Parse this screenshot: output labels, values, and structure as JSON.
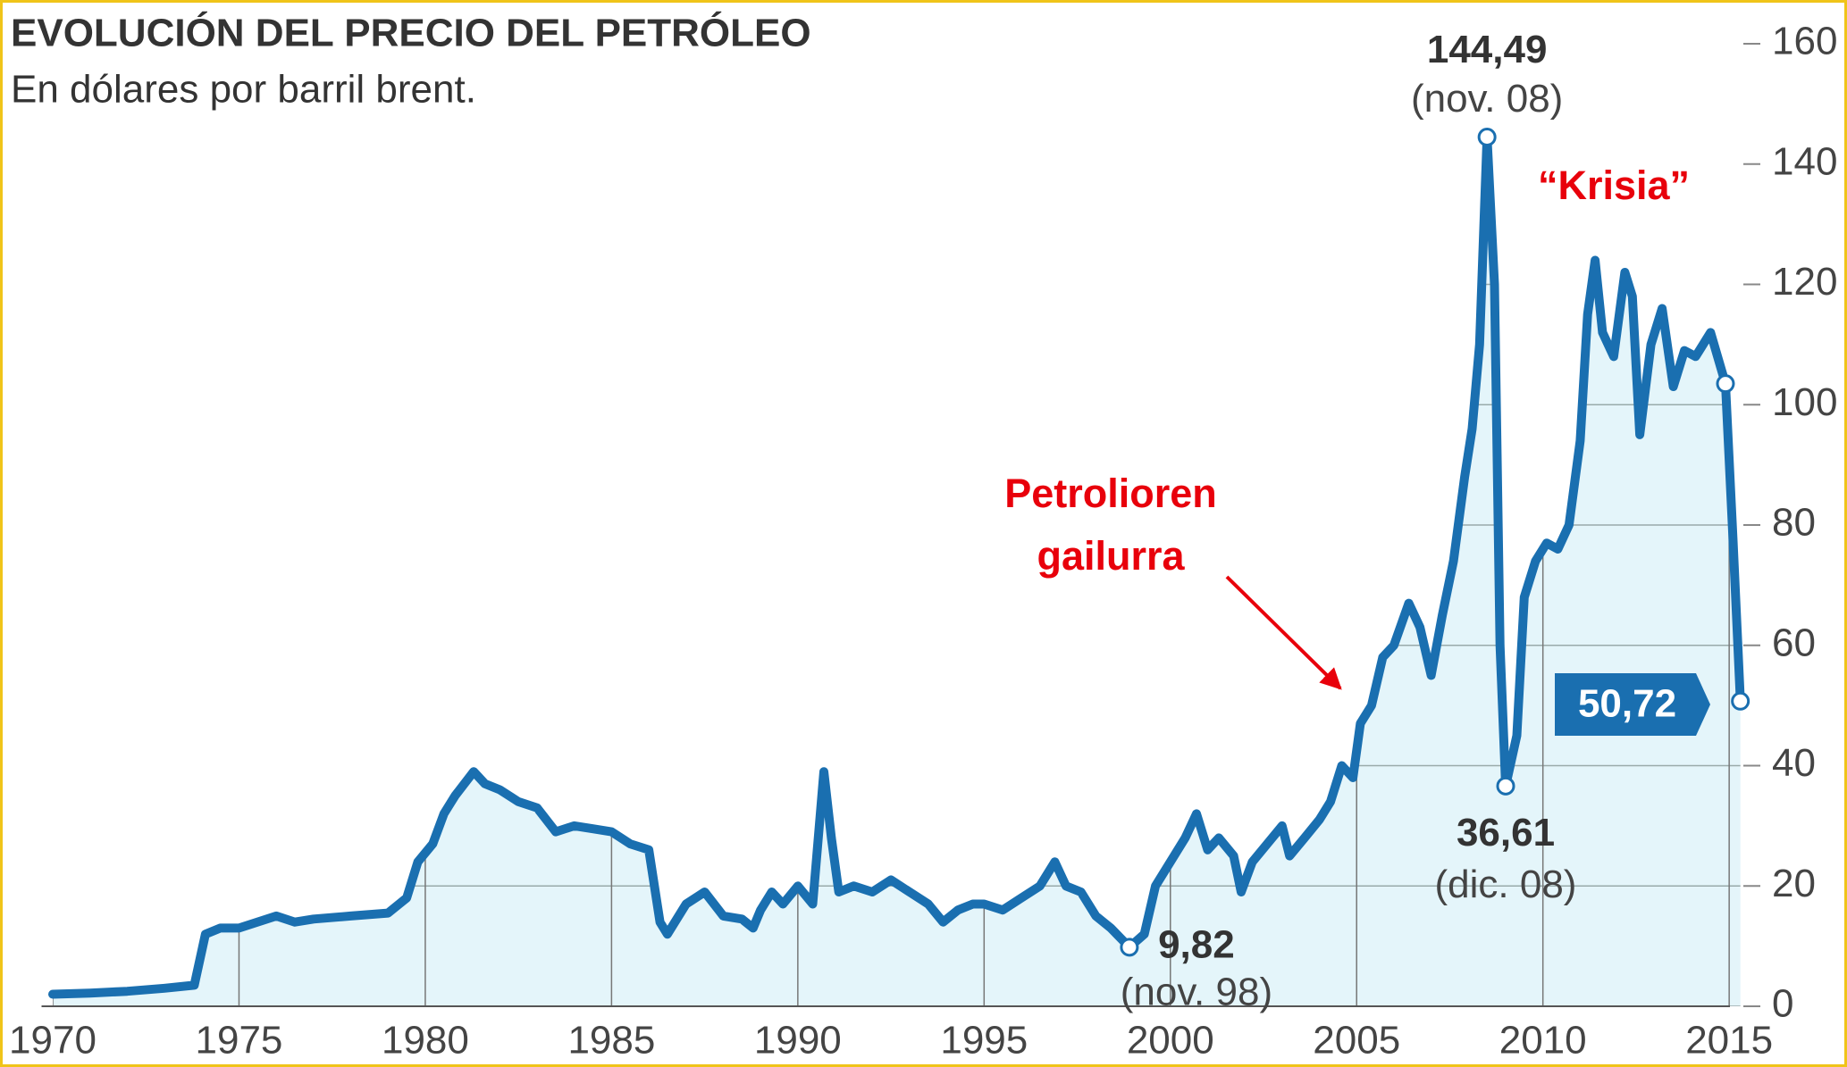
{
  "chart_data": {
    "type": "line",
    "title": "EVOLUCIÓN DEL PRECIO DEL PETRÓLEO",
    "subtitle": "En dólares por barril brent.",
    "series": [
      {
        "color": "#1a6fb0",
        "fill": "#e4f5fa",
        "x": [
          1970,
          1971,
          1972,
          1973,
          1973.8,
          1974.1,
          1974.5,
          1975,
          1976,
          1976.5,
          1977,
          1978,
          1979,
          1979.5,
          1979.8,
          1980.2,
          1980.5,
          1980.8,
          1981.3,
          1981.6,
          1982,
          1982.5,
          1983,
          1983.5,
          1984,
          1984.5,
          1985,
          1985.5,
          1986,
          1986.3,
          1986.5,
          1987,
          1987.5,
          1988,
          1988.5,
          1988.8,
          1989,
          1989.3,
          1989.6,
          1990,
          1990.4,
          1990.7,
          1990.9,
          1991.1,
          1991.5,
          1992,
          1992.5,
          1993,
          1993.5,
          1993.9,
          1994.3,
          1994.7,
          1995,
          1995.5,
          1996,
          1996.5,
          1996.9,
          1997.2,
          1997.6,
          1998,
          1998.4,
          1998.9,
          1999.3,
          1999.6,
          2000,
          2000.4,
          2000.7,
          2001,
          2001.3,
          2001.7,
          2001.9,
          2002.2,
          2002.6,
          2003,
          2003.2,
          2003.6,
          2004,
          2004.3,
          2004.6,
          2004.9,
          2005.1,
          2005.4,
          2005.7,
          2006,
          2006.4,
          2006.7,
          2007,
          2007.3,
          2007.6,
          2007.9,
          2008.1,
          2008.3,
          2008.5,
          2008.7,
          2008.85,
          2009,
          2009.3,
          2009.5,
          2009.8,
          2010.1,
          2010.4,
          2010.7,
          2011,
          2011.2,
          2011.4,
          2011.6,
          2011.9,
          2012.2,
          2012.4,
          2012.6,
          2012.9,
          2013.2,
          2013.5,
          2013.8,
          2014.1,
          2014.5,
          2014.9,
          2015.1,
          2015.3
        ],
        "values": [
          2,
          2.2,
          2.5,
          3,
          3.5,
          12,
          13,
          13,
          15,
          14,
          14.5,
          15,
          15.5,
          18,
          24,
          27,
          32,
          35,
          39,
          37,
          36,
          34,
          33,
          29,
          30,
          29.5,
          29,
          27,
          26,
          14,
          12,
          17,
          19,
          15,
          14.5,
          13,
          16,
          19,
          17,
          20,
          17,
          39,
          28,
          19,
          20,
          19,
          21,
          19,
          17,
          14,
          16,
          17,
          17,
          16,
          18,
          20,
          24,
          20,
          19,
          15,
          13,
          9.82,
          12,
          20,
          24,
          28,
          32,
          26,
          28,
          25,
          19,
          24,
          27,
          30,
          25,
          28,
          31,
          34,
          40,
          38,
          47,
          50,
          58,
          60,
          67,
          63,
          55,
          65,
          74,
          88,
          96,
          110,
          144.49,
          120,
          60,
          36.61,
          45,
          68,
          74,
          77,
          76,
          80,
          94,
          115,
          124,
          112,
          108,
          122,
          118,
          95,
          110,
          116,
          103,
          109,
          108,
          112,
          103.5,
          78,
          50.72
        ]
      }
    ],
    "markers": [
      {
        "x": 2008.5,
        "value": 144.49,
        "label": "144,49",
        "date": "(nov. 08)"
      },
      {
        "x": 2009,
        "value": 36.61,
        "label": "36,61",
        "date": "(dic. 08)"
      },
      {
        "x": 1998.9,
        "value": 9.82,
        "label": "9,82",
        "date": "(nov. 98)"
      },
      {
        "x": 2014.9,
        "value": 103.5
      },
      {
        "x": 2015.3,
        "value": 50.72,
        "label": "50,72"
      }
    ],
    "annotations": [
      {
        "lines": [
          "Petrolioren",
          "gailurra"
        ]
      },
      {
        "lines": [
          "“Krisia”"
        ]
      }
    ],
    "xlim": [
      1969.7,
      2015.5
    ],
    "xticks": [
      1970,
      1975,
      1980,
      1985,
      1990,
      1995,
      2000,
      2005,
      2010,
      2015
    ],
    "ylim": [
      0,
      160
    ],
    "yticks": [
      0,
      20,
      40,
      60,
      80,
      100,
      120,
      140,
      160
    ],
    "grid": true
  }
}
